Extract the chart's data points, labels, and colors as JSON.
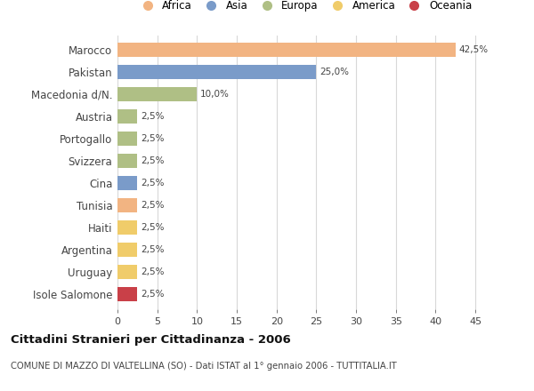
{
  "countries": [
    "Marocco",
    "Pakistan",
    "Macedonia d/N.",
    "Austria",
    "Portogallo",
    "Svizzera",
    "Cina",
    "Tunisia",
    "Haiti",
    "Argentina",
    "Uruguay",
    "Isole Salomone"
  ],
  "values": [
    42.5,
    25.0,
    10.0,
    2.5,
    2.5,
    2.5,
    2.5,
    2.5,
    2.5,
    2.5,
    2.5,
    2.5
  ],
  "labels": [
    "42,5%",
    "25,0%",
    "10,0%",
    "2,5%",
    "2,5%",
    "2,5%",
    "2,5%",
    "2,5%",
    "2,5%",
    "2,5%",
    "2,5%",
    "2,5%"
  ],
  "colors": [
    "#F2B482",
    "#7A9BC9",
    "#AFBF85",
    "#AFBF85",
    "#AFBF85",
    "#AFBF85",
    "#7A9BC9",
    "#F2B482",
    "#F0CC6A",
    "#F0CC6A",
    "#F0CC6A",
    "#C94048"
  ],
  "continents": [
    "Africa",
    "Asia",
    "Europa",
    "America",
    "Oceania"
  ],
  "legend_colors": [
    "#F2B482",
    "#7A9BC9",
    "#AFBF85",
    "#F0CC6A",
    "#C94048"
  ],
  "xlim": [
    0,
    47
  ],
  "xticks": [
    0,
    5,
    10,
    15,
    20,
    25,
    30,
    35,
    40,
    45
  ],
  "title": "Cittadini Stranieri per Cittadinanza - 2006",
  "subtitle": "COMUNE DI MAZZO DI VALTELLINA (SO) - Dati ISTAT al 1° gennaio 2006 - TUTTITALIA.IT",
  "bg_color": "#ffffff",
  "grid_color": "#d8d8d8",
  "bar_height": 0.65
}
